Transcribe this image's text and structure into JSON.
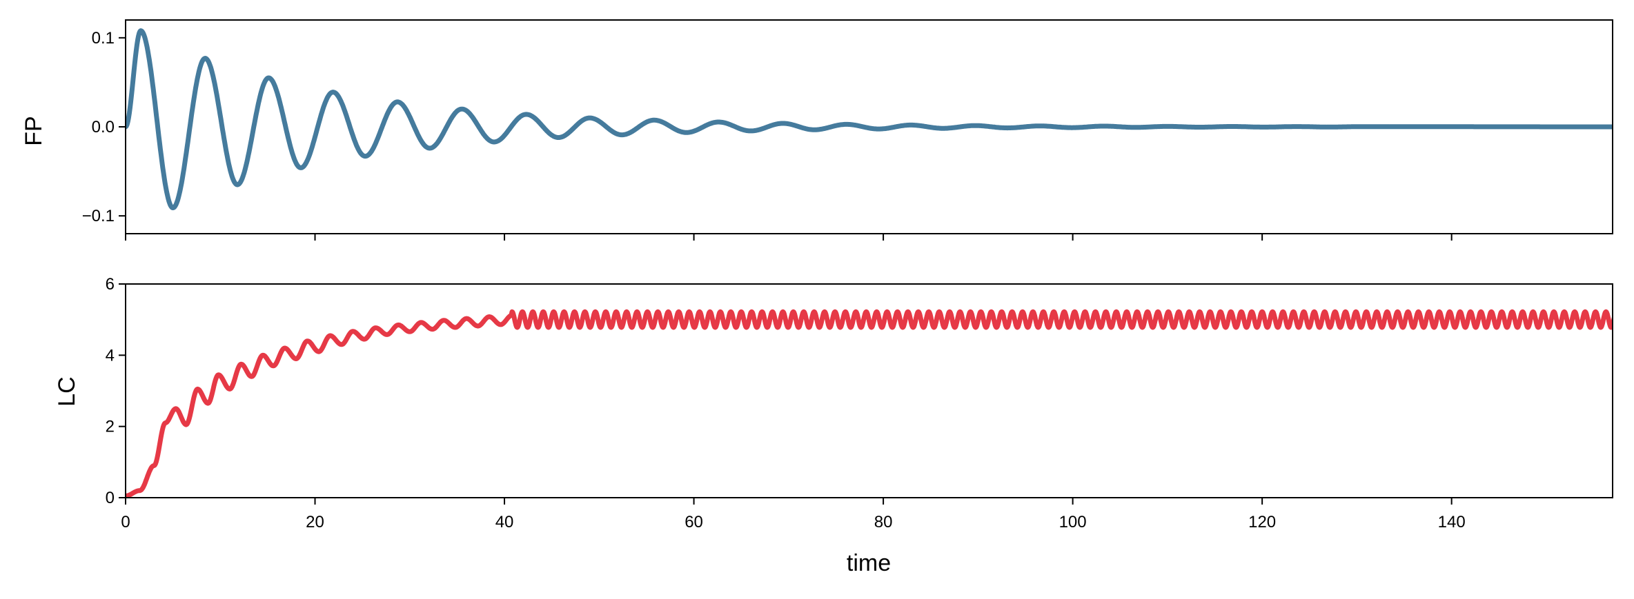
{
  "chart_data": [
    {
      "type": "line",
      "title": "",
      "xlabel": "",
      "ylabel": "FP",
      "xlim": [
        0,
        157
      ],
      "ylim": [
        -0.12,
        0.12
      ],
      "yticks": [
        -0.1,
        0.0,
        0.1
      ],
      "ytick_labels": [
        "−0.1",
        "0.0",
        "0.1"
      ],
      "xticks": [
        0,
        20,
        40,
        60,
        80,
        100,
        120,
        140
      ],
      "xtick_labels_visible": false,
      "grid": false,
      "series": [
        {
          "color": "#457b9d",
          "x": [
            0,
            1.6,
            5.0,
            8.4,
            11.8,
            15.1,
            18.5,
            21.9,
            25.3,
            28.7,
            32.1,
            35.5,
            38.9,
            42.3,
            45.7,
            49.0,
            52.4,
            55.8,
            59.2,
            62.6,
            66.0,
            69.4,
            72.7,
            76.1,
            79.5,
            82.9,
            86.3,
            89.7,
            93.1,
            96.5,
            99.9,
            103.3,
            106.6,
            110.0,
            113.4,
            116.8,
            120.2,
            123.6,
            127.0,
            130.4,
            157
          ],
          "y": [
            0,
            0.108,
            -0.091,
            0.077,
            -0.065,
            0.055,
            -0.046,
            0.039,
            -0.033,
            0.028,
            -0.024,
            0.02,
            -0.017,
            0.014,
            -0.012,
            0.01,
            -0.009,
            0.0075,
            -0.0064,
            0.0054,
            -0.0046,
            0.0039,
            -0.0033,
            0.0028,
            -0.0024,
            0.002,
            -0.0017,
            0.0014,
            -0.0012,
            0.001,
            -0.0009,
            0.0008,
            -0.0006,
            0.0005,
            -0.0004,
            0.0004,
            -0.0003,
            0.0003,
            -0.0002,
            0.0002,
            0
          ]
        }
      ]
    },
    {
      "type": "line",
      "title": "",
      "xlabel": "time",
      "ylabel": "LC",
      "xlim": [
        0,
        157
      ],
      "ylim": [
        0,
        6
      ],
      "yticks": [
        0,
        2,
        4,
        6
      ],
      "ytick_labels": [
        "0",
        "2",
        "4",
        "6"
      ],
      "xticks": [
        0,
        20,
        40,
        60,
        80,
        100,
        120,
        140
      ],
      "xtick_labels": [
        "0",
        "20",
        "40",
        "60",
        "80",
        "100",
        "120",
        "140"
      ],
      "grid": false,
      "series": [
        {
          "color": "#e63946",
          "x": [
            0,
            1.5,
            3.0,
            4.2,
            5.3,
            6.4,
            7.6,
            8.7,
            9.8,
            11.0,
            12.2,
            13.3,
            14.5,
            15.6,
            16.8,
            18.0,
            19.2,
            20.4,
            21.6,
            22.8,
            24.0,
            25.2,
            26.4,
            27.6,
            28.8,
            30.0,
            31.2,
            32.4,
            33.6,
            34.8,
            36.0,
            37.2,
            38.4,
            39.6,
            40.8,
            157
          ],
          "y": [
            0.05,
            0.2,
            0.9,
            2.1,
            2.5,
            2.05,
            3.05,
            2.65,
            3.45,
            3.05,
            3.75,
            3.4,
            4.0,
            3.7,
            4.2,
            3.9,
            4.4,
            4.1,
            4.55,
            4.3,
            4.67,
            4.45,
            4.77,
            4.58,
            4.85,
            4.66,
            4.92,
            4.73,
            4.98,
            4.78,
            5.03,
            4.82,
            5.08,
            4.86,
            5.12,
            5.12
          ],
          "steady_state": {
            "x_start": 40.8,
            "mean": 5.0,
            "amplitude": 0.22,
            "period": 1.1
          }
        }
      ]
    }
  ]
}
